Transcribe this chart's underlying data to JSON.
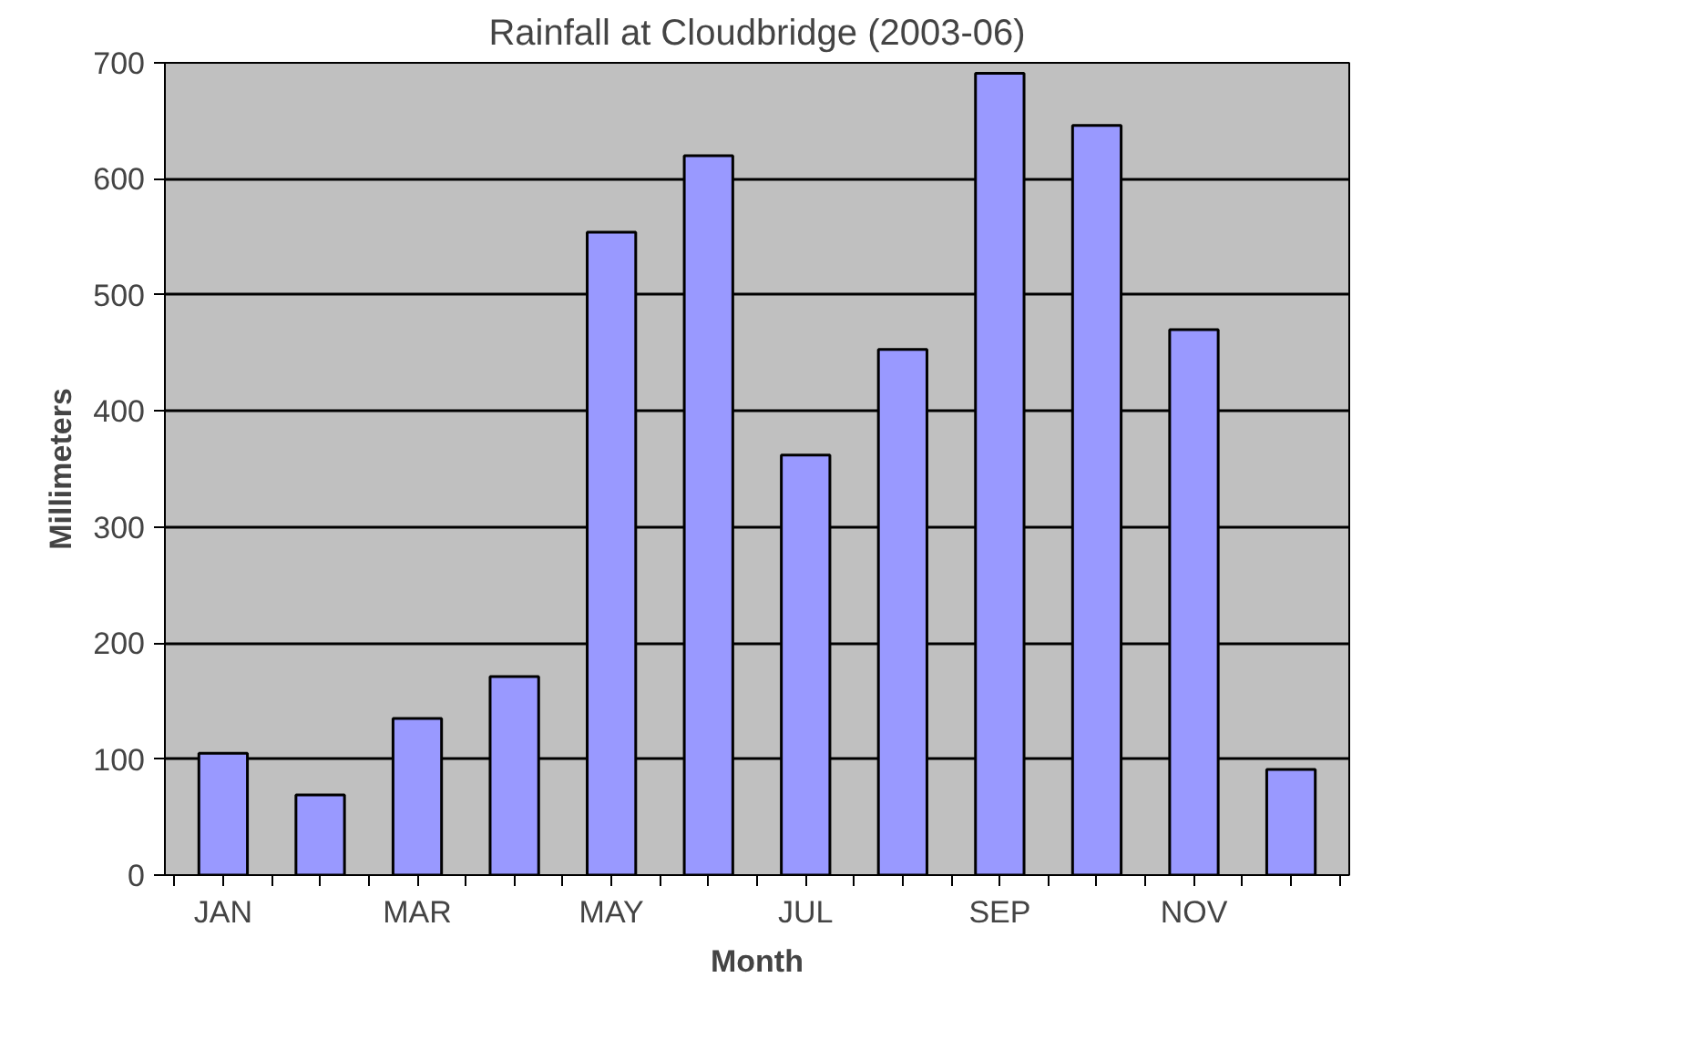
{
  "chart_data": {
    "type": "bar",
    "title": "Rainfall at Cloudbridge (2003-06)",
    "xlabel": "Month",
    "ylabel": "Millimeters",
    "categories": [
      "JAN",
      null,
      "MAR",
      null,
      "MAY",
      null,
      "JUL",
      null,
      "SEP",
      null,
      "NOV",
      null
    ],
    "values": [
      105,
      69,
      135,
      171,
      554,
      620,
      362,
      453,
      691,
      646,
      470,
      91
    ],
    "color": "#9999ff",
    "ylim": [
      0,
      700
    ],
    "yticks": [
      0,
      100,
      200,
      300,
      400,
      500,
      600,
      700
    ],
    "grid": "y"
  }
}
